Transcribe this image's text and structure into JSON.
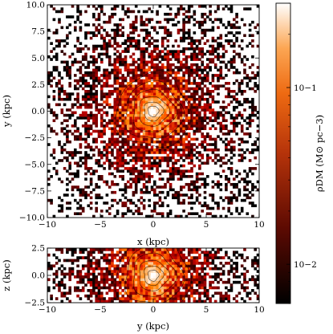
{
  "chart_data": [
    {
      "type": "heatmap",
      "panel": "face-on projection",
      "xlabel": "x (kpc)",
      "ylabel": "y (kpc)",
      "xlim": [
        -10,
        10
      ],
      "ylim": [
        -10,
        10
      ],
      "xticks": [
        -10,
        -5,
        0,
        5,
        10
      ],
      "xtick_labels": [
        "−10",
        "−5",
        "0",
        "5",
        "10"
      ],
      "yticks": [
        -10.0,
        -7.5,
        -5.0,
        -2.5,
        0.0,
        2.5,
        5.0,
        7.5,
        10.0
      ],
      "ytick_labels": [
        "−10.0",
        "−7.5",
        "−5.0",
        "−2.5",
        "0.0",
        "2.5",
        "5.0",
        "7.5",
        "10.0"
      ],
      "contour_radii_kpc": [
        0.5,
        0.9,
        1.4,
        2.0,
        2.7,
        3.5
      ],
      "grid": false
    },
    {
      "type": "heatmap",
      "panel": "edge-on projection",
      "xlabel": "y (kpc)",
      "ylabel": "z (kpc)",
      "xlim": [
        -10,
        10
      ],
      "ylim": [
        -2.5,
        2.5
      ],
      "xticks": [
        -10,
        -5,
        0,
        5,
        10
      ],
      "xtick_labels": [
        "−10",
        "−5",
        "0",
        "5",
        "10"
      ],
      "yticks": [
        -2.5,
        0.0,
        2.5
      ],
      "ytick_labels": [
        "−2.5",
        "0.0",
        "2.5"
      ],
      "contour_radii_kpc": [
        0.5,
        0.9,
        1.4,
        2.0,
        2.7,
        3.5
      ],
      "grid": false
    },
    {
      "type": "colorbar",
      "label": "ρDM (M⊙ pc−3)",
      "scale": "log",
      "range": [
        0.006,
        0.3
      ],
      "ticks": [
        0.01,
        0.1
      ],
      "tick_labels": [
        "10−2",
        "10−1"
      ],
      "colormap": "gist_heat"
    }
  ],
  "colors": {
    "background": "#ffffff",
    "axes": "#000000",
    "cmap_low": "#000000",
    "cmap_mid": "#c8400a",
    "cmap_high": "#ffffff"
  }
}
